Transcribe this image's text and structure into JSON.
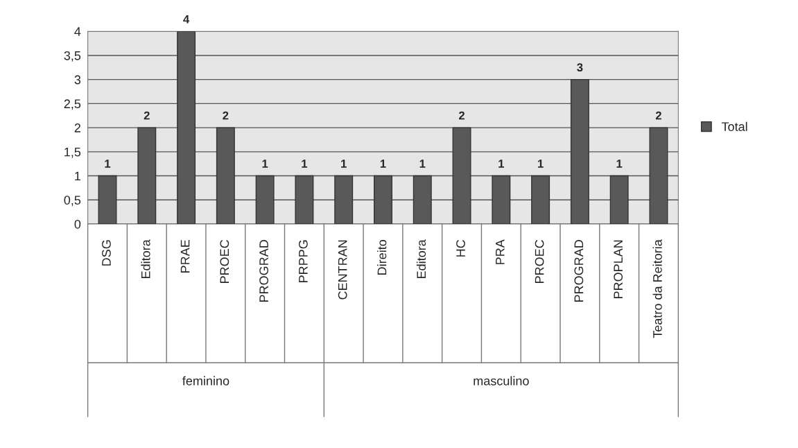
{
  "chart_data": {
    "type": "bar",
    "categories": [
      "DSG",
      "Editora",
      "PRAE",
      "PROEC",
      "PROGRAD",
      "PRPPG",
      "CENTRAN",
      "Direito",
      "Editora",
      "HC",
      "PRA",
      "PROEC",
      "PROGRAD",
      "PROPLAN",
      "Teatro da Reitoria"
    ],
    "series": [
      {
        "name": "Total",
        "color": "#595959",
        "values": [
          1,
          2,
          4,
          2,
          1,
          1,
          1,
          1,
          1,
          2,
          1,
          1,
          3,
          1,
          2
        ]
      }
    ],
    "ylim": [
      0,
      4
    ],
    "yticks": [
      0,
      {
        "value": 0.5,
        "label": "0,5"
      },
      1,
      {
        "value": 1.5,
        "label": "1,5"
      },
      2,
      {
        "value": 2.5,
        "label": "2,5"
      },
      3,
      {
        "value": 3.5,
        "label": "3,5"
      },
      4
    ],
    "grid": "y",
    "legend": "right",
    "data_labels": true,
    "annotations": [
      "feminino",
      "masculino"
    ]
  }
}
